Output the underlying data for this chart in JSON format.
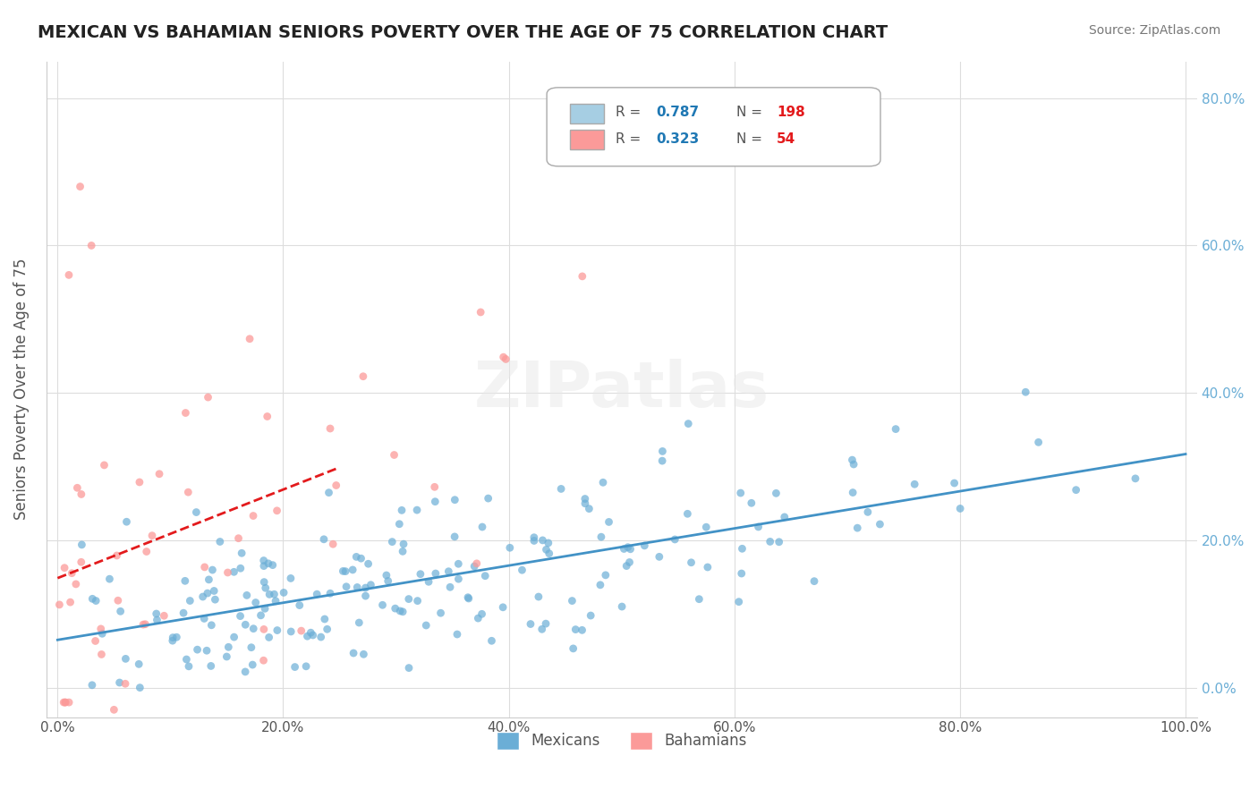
{
  "title": "MEXICAN VS BAHAMIAN SENIORS POVERTY OVER THE AGE OF 75 CORRELATION CHART",
  "source": "Source: ZipAtlas.com",
  "xlabel": "",
  "ylabel": "Seniors Poverty Over the Age of 75",
  "r_mexican": 0.787,
  "n_mexican": 198,
  "r_bahamian": 0.323,
  "n_bahamian": 54,
  "mexican_color": "#6baed6",
  "bahamian_color": "#fb9a99",
  "trendline_mexican_color": "#4292c6",
  "trendline_bahamian_color": "#e31a1c",
  "legend_box_mexican": "#a6cee3",
  "legend_box_bahamian": "#fb9a99",
  "legend_text_color_r_mexican": "#1f78b4",
  "legend_text_color_n_mexican": "#e31a1c",
  "legend_text_color_r_bahamian": "#1f78b4",
  "legend_text_color_n_bahamian": "#e31a1c",
  "watermark": "ZIPatlas",
  "background_color": "#ffffff",
  "grid_color": "#dddddd",
  "title_fontsize": 14,
  "axis_tick_color": "#555555",
  "right_axis_color": "#6baed6",
  "right_axis_tick_color_mexican": "#6baed6",
  "xmin": 0.0,
  "xmax": 1.0,
  "ymin": -0.04,
  "ymax": 0.85
}
